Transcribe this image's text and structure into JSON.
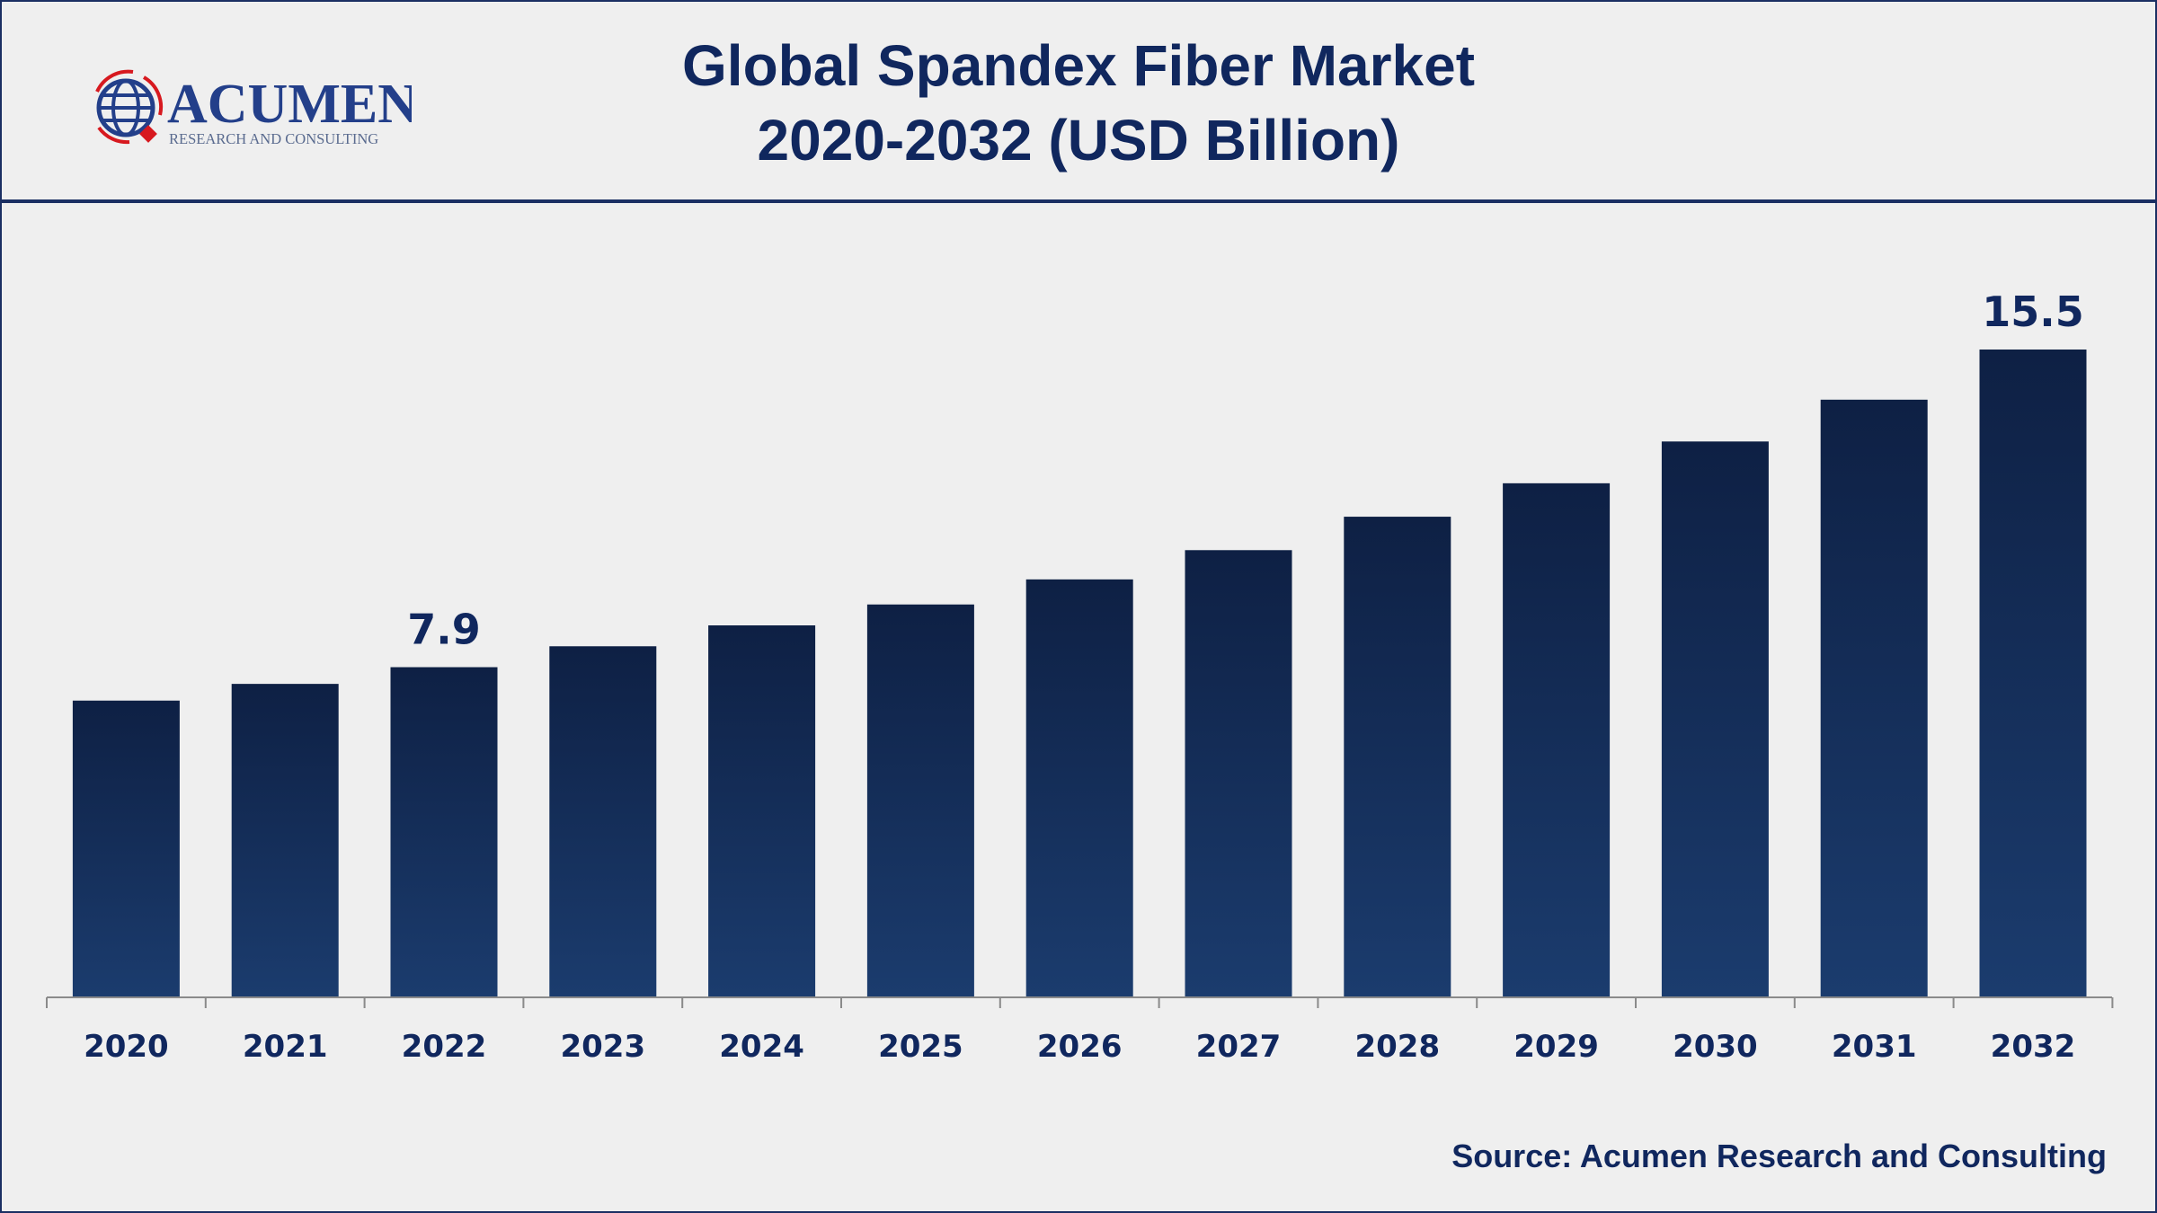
{
  "header": {
    "title_line1": "Global Spandex Fiber Market",
    "title_line2": "2020-2032 (USD Billion)",
    "logo_text": "ACUMEN",
    "logo_subtext": "RESEARCH AND CONSULTING"
  },
  "source": "Source: Acumen Research and Consulting",
  "colors": {
    "bar_top": "#0e2044",
    "bar_bottom": "#1b3c6e",
    "text": "#10275e",
    "logo_red": "#d7191f"
  },
  "chart_data": {
    "type": "bar",
    "title": "Global Spandex Fiber Market 2020-2032 (USD Billion)",
    "categories": [
      "2020",
      "2021",
      "2022",
      "2023",
      "2024",
      "2025",
      "2026",
      "2027",
      "2028",
      "2029",
      "2030",
      "2031",
      "2032"
    ],
    "values": [
      7.1,
      7.5,
      7.9,
      8.4,
      8.9,
      9.4,
      10.0,
      10.7,
      11.5,
      12.3,
      13.3,
      14.3,
      15.5
    ],
    "data_labels": {
      "2022": "7.9",
      "2032": "15.5"
    },
    "xlabel": "",
    "ylabel": "",
    "ylim": [
      0,
      15.5
    ],
    "grid": false,
    "legend": "none"
  }
}
